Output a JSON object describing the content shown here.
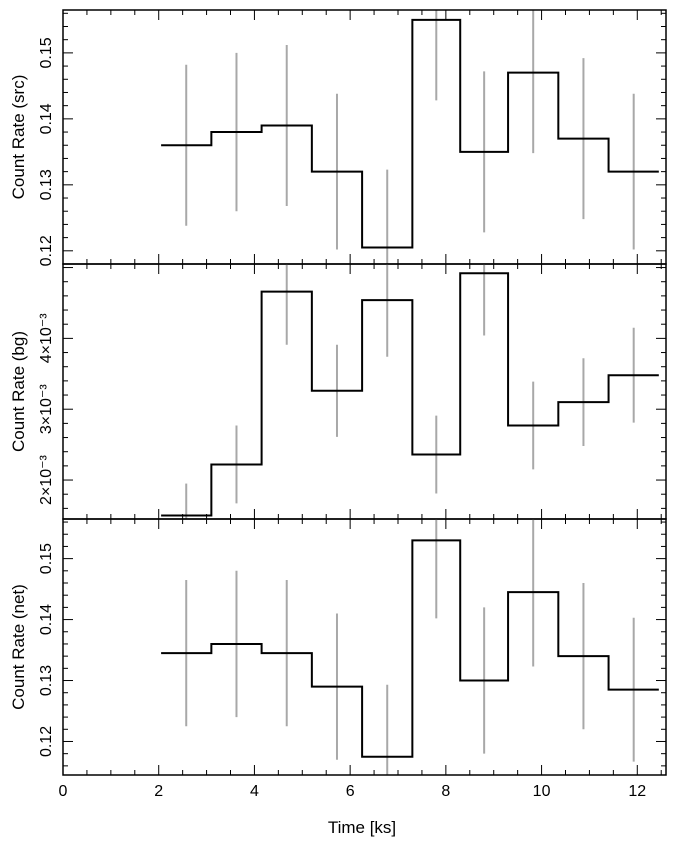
{
  "chart_data": {
    "type": "line",
    "xlabel": "Time [ks]",
    "x_ticks": [
      "0",
      "2",
      "4",
      "6",
      "8",
      "10",
      "12"
    ],
    "xlim": [
      0,
      12.6
    ],
    "bin_edges": [
      2.05,
      3.1,
      4.15,
      5.2,
      6.25,
      7.3,
      8.3,
      9.3,
      10.35,
      11.4,
      12.45
    ],
    "panels": [
      {
        "ylabel": "Count Rate (src)",
        "ylim": [
          0.118,
          0.1565
        ],
        "y_ticks": [
          {
            "value": 0.12,
            "label": "0.12"
          },
          {
            "value": 0.13,
            "label": "0.13"
          },
          {
            "value": 0.14,
            "label": "0.14"
          },
          {
            "value": 0.15,
            "label": "0.15"
          }
        ],
        "values": [
          0.136,
          0.138,
          0.139,
          0.132,
          0.1205,
          0.155,
          0.135,
          0.147,
          0.137,
          0.132
        ],
        "errors": [
          0.0122,
          0.012,
          0.0122,
          0.0118,
          0.0118,
          0.0122,
          0.0122,
          0.0122,
          0.0122,
          0.0118
        ]
      },
      {
        "ylabel": "Count Rate (bg)",
        "ylim": [
          0.00145,
          0.00505
        ],
        "y_ticks": [
          {
            "value": 0.002,
            "label": "2×10⁻³"
          },
          {
            "value": 0.003,
            "label": "3×10⁻³"
          },
          {
            "value": 0.004,
            "label": "4×10⁻³"
          }
        ],
        "values": [
          0.0015,
          0.00222,
          0.00466,
          0.00326,
          0.00454,
          0.00236,
          0.00492,
          0.00277,
          0.0031,
          0.00348
        ],
        "errors": [
          0.00045,
          0.00055,
          0.00075,
          0.00065,
          0.0008,
          0.00055,
          0.00088,
          0.00062,
          0.00062,
          0.00067
        ]
      },
      {
        "ylabel": "Count Rate (net)",
        "ylim": [
          0.1145,
          0.1565
        ],
        "y_ticks": [
          {
            "value": 0.12,
            "label": "0.12"
          },
          {
            "value": 0.13,
            "label": "0.13"
          },
          {
            "value": 0.14,
            "label": "0.14"
          },
          {
            "value": 0.15,
            "label": "0.15"
          }
        ],
        "values": [
          0.1345,
          0.136,
          0.1345,
          0.129,
          0.1175,
          0.153,
          0.13,
          0.1445,
          0.134,
          0.1285
        ],
        "errors": [
          0.012,
          0.012,
          0.012,
          0.012,
          0.0118,
          0.0128,
          0.012,
          0.0122,
          0.012,
          0.0118
        ]
      }
    ]
  }
}
